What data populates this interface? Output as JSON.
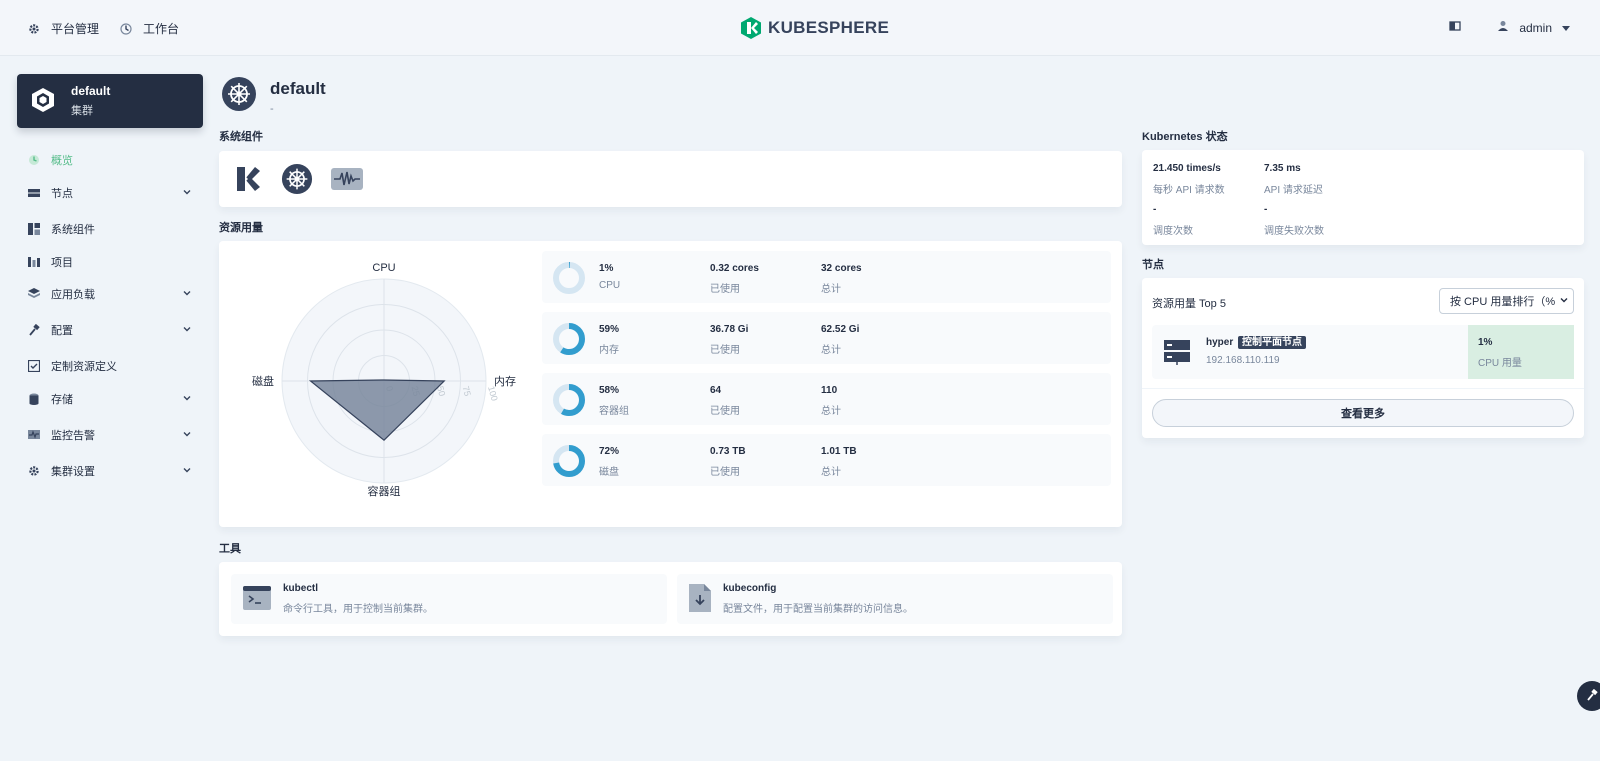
{
  "topbar": {
    "platform_label": "平台管理",
    "workbench_label": "工作台",
    "logo_text": "KUBESPHERE",
    "user_name": "admin"
  },
  "sidebar": {
    "cluster": {
      "name": "default",
      "type": "集群"
    },
    "items": [
      {
        "label": "概览",
        "icon": "dashboard-icon",
        "active": true
      },
      {
        "label": "节点",
        "icon": "nodes-icon"
      },
      {
        "label": "系统组件",
        "icon": "components-icon"
      },
      {
        "label": "项目",
        "icon": "project-icon"
      },
      {
        "label": "应用负载",
        "icon": "appcluster-icon"
      },
      {
        "label": "配置",
        "icon": "hammer-icon"
      },
      {
        "label": "定制资源定义",
        "icon": "crd-icon"
      },
      {
        "label": "存储",
        "icon": "database-icon"
      },
      {
        "label": "监控告警",
        "icon": "monitor-icon"
      },
      {
        "label": "集群设置",
        "icon": "gear-icon"
      }
    ]
  },
  "header": {
    "title": "default",
    "description": "-"
  },
  "sections": {
    "components": "系统组件",
    "resources": "资源用量",
    "tools": "工具",
    "k8s": "Kubernetes 状态",
    "nodes": "节点"
  },
  "radar": {
    "axes": [
      "CPU",
      "内存",
      "容器组",
      "磁盘"
    ],
    "ticks": [
      "0",
      "25",
      "50",
      "75",
      "100"
    ]
  },
  "chart_data": {
    "type": "radar",
    "axes": [
      "CPU",
      "内存",
      "容器组",
      "磁盘"
    ],
    "values": [
      1,
      59,
      58,
      72
    ],
    "range": [
      0,
      100
    ]
  },
  "resources": [
    {
      "percent": "1%",
      "pct": 1,
      "name": "CPU",
      "used": "0.32 cores",
      "used_label": "已使用",
      "total": "32 cores",
      "total_label": "总计"
    },
    {
      "percent": "59%",
      "pct": 59,
      "name": "内存",
      "used": "36.78 Gi",
      "used_label": "已使用",
      "total": "62.52 Gi",
      "total_label": "总计"
    },
    {
      "percent": "58%",
      "pct": 58,
      "name": "容器组",
      "used": "64",
      "used_label": "已使用",
      "total": "110",
      "total_label": "总计"
    },
    {
      "percent": "72%",
      "pct": 72,
      "name": "磁盘",
      "used": "0.73 TB",
      "used_label": "已使用",
      "total": "1.01 TB",
      "total_label": "总计"
    }
  ],
  "k8s_status": [
    {
      "value": "21.450 times/s",
      "label": "每秒 API 请求数"
    },
    {
      "value": "7.35 ms",
      "label": "API 请求延迟"
    },
    {
      "value": "-",
      "label": "调度次数"
    },
    {
      "value": "-",
      "label": "调度失败次数"
    }
  ],
  "nodes": {
    "top_title": "资源用量 Top 5",
    "sort_select": "按 CPU 用量排行（%",
    "node_name": "hyper",
    "node_role": "控制平面节点",
    "node_ip": "192.168.110.119",
    "cpu_value": "1%",
    "cpu_label": "CPU 用量",
    "more_button": "查看更多"
  },
  "tools": [
    {
      "name": "kubectl",
      "desc": "命令行工具，用于控制当前集群。"
    },
    {
      "name": "kubeconfig",
      "desc": "配置文件，用于配置当前集群的访问信息。"
    }
  ],
  "colors": {
    "accent": "#55bc8a",
    "dark": "#242e42",
    "donut": "#329dce",
    "donut_track": "#d5e6f2"
  }
}
